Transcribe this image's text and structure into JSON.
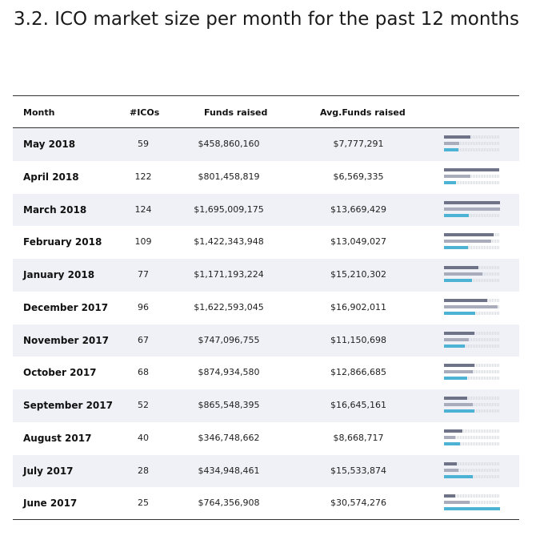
{
  "title": "3.2. ICO market size per month for the past 12 months",
  "chart_data": {
    "type": "table",
    "columns": [
      "Month",
      "#ICOs",
      "Funds raised",
      "Avg.Funds raised"
    ],
    "rows": [
      {
        "month": "May 2018",
        "icos": "59",
        "funds": "$458,860,160",
        "avg": "$7,777,291",
        "icos_value": 59,
        "funds_value": 458860160,
        "avg_value": 7777291
      },
      {
        "month": "April 2018",
        "icos": "122",
        "funds": "$801,458,819",
        "avg": "$6,569,335",
        "icos_value": 122,
        "funds_value": 801458819,
        "avg_value": 6569335
      },
      {
        "month": "March 2018",
        "icos": "124",
        "funds": "$1,695,009,175",
        "avg": "$13,669,429",
        "icos_value": 124,
        "funds_value": 1695009175,
        "avg_value": 13669429
      },
      {
        "month": "February 2018",
        "icos": "109",
        "funds": "$1,422,343,948",
        "avg": "$13,049,027",
        "icos_value": 109,
        "funds_value": 1422343948,
        "avg_value": 13049027
      },
      {
        "month": "January 2018",
        "icos": "77",
        "funds": "$1,171,193,224",
        "avg": "$15,210,302",
        "icos_value": 77,
        "funds_value": 1171193224,
        "avg_value": 15210302
      },
      {
        "month": "December 2017",
        "icos": "96",
        "funds": "$1,622,593,045",
        "avg": "$16,902,011",
        "icos_value": 96,
        "funds_value": 1622593045,
        "avg_value": 16902011
      },
      {
        "month": "November 2017",
        "icos": "67",
        "funds": "$747,096,755",
        "avg": "$11,150,698",
        "icos_value": 67,
        "funds_value": 747096755,
        "avg_value": 11150698
      },
      {
        "month": "October 2017",
        "icos": "68",
        "funds": "$874,934,580",
        "avg": "$12,866,685",
        "icos_value": 68,
        "funds_value": 874934580,
        "avg_value": 12866685
      },
      {
        "month": "September 2017",
        "icos": "52",
        "funds": "$865,548,395",
        "avg": "$16,645,161",
        "icos_value": 52,
        "funds_value": 865548395,
        "avg_value": 16645161
      },
      {
        "month": "August 2017",
        "icos": "40",
        "funds": "$346,748,662",
        "avg": "$8,668,717",
        "icos_value": 40,
        "funds_value": 346748662,
        "avg_value": 8668717
      },
      {
        "month": "July 2017",
        "icos": "28",
        "funds": "$434,948,461",
        "avg": "$15,533,874",
        "icos_value": 28,
        "funds_value": 434948461,
        "avg_value": 15533874
      },
      {
        "month": "June 2017",
        "icos": "25",
        "funds": "$764,356,908",
        "avg": "$30,574,276",
        "icos_value": 25,
        "funds_value": 764356908,
        "avg_value": 30574276
      }
    ],
    "bar_colors": {
      "icos": "#6e7388",
      "funds": "#a9acba",
      "avg": "#4db3d4",
      "track": "#d9dbe2"
    },
    "row_stripe_color": "#f0f1f6"
  }
}
